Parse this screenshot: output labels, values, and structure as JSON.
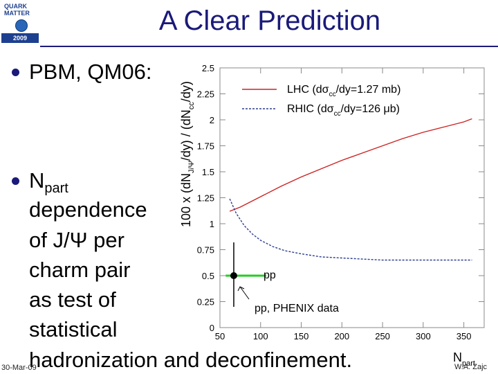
{
  "slide": {
    "title": "A Clear Prediction",
    "logo": {
      "line1": "QUARK",
      "line2": "MATTER",
      "year": "2009"
    },
    "bullets": [
      {
        "text": "PBM, QM06:"
      },
      {
        "lines": [
          "N",
          "dependence",
          "of J/Ψ per",
          "charm pair",
          "as test of",
          "statistical",
          "hadronization and deconfinement."
        ],
        "subscript": "part"
      }
    ],
    "footer_left": "30-Mar-09",
    "footer_right": "W.A. Zajc"
  },
  "chart_data": {
    "type": "line",
    "ylabel_main": "100 x (dN",
    "ylabel_sub1": "J/Ψ",
    "ylabel_mid": "/dy) / (dN",
    "ylabel_sub2": "cc",
    "ylabel_end": "/dy)",
    "xlabel_main": "N",
    "xlabel_sub": "part",
    "xlim": [
      50,
      375
    ],
    "ylim": [
      0,
      2.5
    ],
    "xticks": [
      "50",
      "100",
      "150",
      "200",
      "250",
      "300",
      "350"
    ],
    "yticks": [
      "0",
      "0.25",
      "0.5",
      "0.75",
      "1",
      "1.25",
      "1.5",
      "1.75",
      "2",
      "2.25",
      "2.5"
    ],
    "series": [
      {
        "name": "LHC (dσ",
        "name_sub": "cc",
        "name_end": "/dy=1.27 mb)",
        "color": "#cc2222",
        "style": "solid",
        "x": [
          62,
          75,
          100,
          125,
          150,
          175,
          200,
          225,
          250,
          275,
          300,
          325,
          350,
          360
        ],
        "y": [
          1.12,
          1.16,
          1.26,
          1.36,
          1.45,
          1.53,
          1.61,
          1.68,
          1.75,
          1.82,
          1.88,
          1.93,
          1.98,
          2.01
        ]
      },
      {
        "name": "RHIC (dσ",
        "name_sub": "cc",
        "name_end": "/dy=126 μb)",
        "color": "#2c3e8f",
        "style": "dashed",
        "x": [
          62,
          70,
          80,
          90,
          100,
          115,
          130,
          150,
          175,
          200,
          250,
          300,
          350,
          360
        ],
        "y": [
          1.24,
          1.1,
          0.98,
          0.9,
          0.84,
          0.78,
          0.74,
          0.71,
          0.68,
          0.67,
          0.65,
          0.65,
          0.65,
          0.65
        ]
      }
    ],
    "pp_point": {
      "label": "pp",
      "x": 67,
      "y": 0.5,
      "err_low": 0.2,
      "err_high": 0.82,
      "band_x": [
        57,
        107
      ],
      "line_color": "#22cc22"
    },
    "annotation": "pp, PHENIX data"
  }
}
